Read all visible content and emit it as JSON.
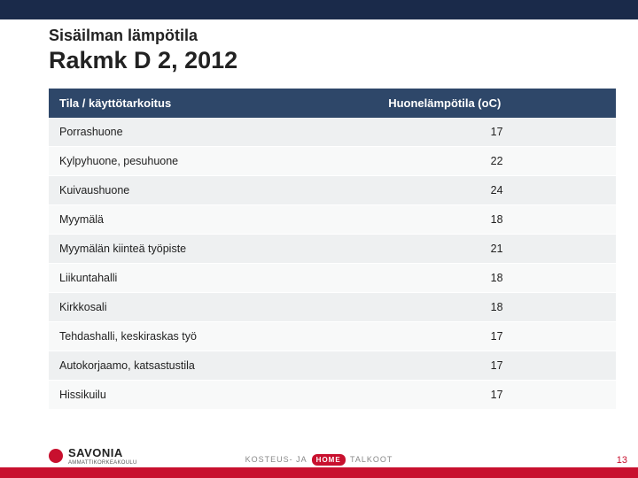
{
  "header_bar_color": "#1a2a4a",
  "subtitle": "Sisäilman lämpötila",
  "title": "Rakmk D 2, 2012",
  "table": {
    "header_bg": "#2e4769",
    "header_fg": "#ffffff",
    "row_odd_bg": "#eef0f1",
    "row_even_bg": "#f8f9f9",
    "columns": [
      "Tila / käyttötarkoitus",
      "Huonelämpötila (oC)"
    ],
    "col_widths": [
      "58%",
      "42%"
    ],
    "rows": [
      [
        "Porrashuone",
        "17"
      ],
      [
        "Kylpyhuone, pesuhuone",
        "22"
      ],
      [
        "Kuivaushuone",
        "24"
      ],
      [
        "Myymälä",
        "18"
      ],
      [
        "Myymälän kiinteä työpiste",
        "21"
      ],
      [
        "Liikuntahalli",
        "18"
      ],
      [
        "Kirkkosali",
        "18"
      ],
      [
        "Tehdashalli, keskiraskas työ",
        "17"
      ],
      [
        "Autokorjaamo, katsastustila",
        "17"
      ],
      [
        "Hissikuilu",
        "17"
      ]
    ]
  },
  "footer": {
    "strip_color": "#c8102e",
    "logo_name": "SAVONIA",
    "logo_sub": "AMMATTIKORKEAKOULU",
    "mid_left": "KOSTEUS- JA",
    "mid_badge": "HOME",
    "mid_right": "TALKOOT",
    "page_number": "13"
  },
  "style": {
    "subtitle_fontsize": 18,
    "title_fontsize": 27,
    "th_fontsize": 13,
    "td_fontsize": 12.5
  }
}
